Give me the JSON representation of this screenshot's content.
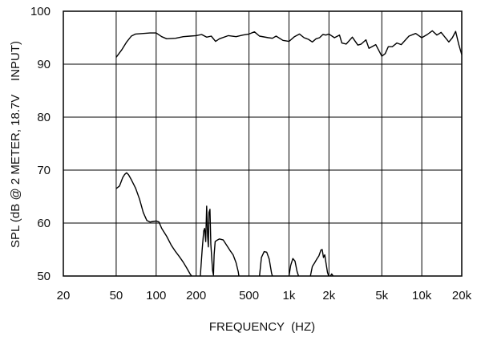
{
  "chart_data": {
    "type": "line",
    "xlabel": "FREQUENCY  (HZ)",
    "ylabel": "SPL (dB @ 2 METER, 18.7V    INPUT)",
    "x_scale": "log",
    "xlim": [
      20,
      20000
    ],
    "ylim": [
      50,
      100
    ],
    "grid": true,
    "x_ticks": [
      {
        "value": 20,
        "label": "20"
      },
      {
        "value": 50,
        "label": "50"
      },
      {
        "value": 100,
        "label": "100"
      },
      {
        "value": 200,
        "label": "200"
      },
      {
        "value": 500,
        "label": "500"
      },
      {
        "value": 1000,
        "label": "1k"
      },
      {
        "value": 2000,
        "label": "2k"
      },
      {
        "value": 5000,
        "label": "5k"
      },
      {
        "value": 10000,
        "label": "10k"
      },
      {
        "value": 20000,
        "label": "20k"
      }
    ],
    "y_ticks": [
      {
        "value": 50,
        "label": "50"
      },
      {
        "value": 60,
        "label": "60"
      },
      {
        "value": 70,
        "label": "70"
      },
      {
        "value": 80,
        "label": "80"
      },
      {
        "value": 90,
        "label": "90"
      },
      {
        "value": 100,
        "label": "100"
      }
    ],
    "series": [
      {
        "segments": [
          [
            [
              50,
              91.3
            ],
            [
              55,
              92.7
            ],
            [
              60,
              94.2
            ],
            [
              65,
              95.3
            ],
            [
              70,
              95.7
            ],
            [
              80,
              95.8
            ],
            [
              90,
              95.9
            ],
            [
              100,
              95.9
            ],
            [
              110,
              95.2
            ],
            [
              120,
              94.8
            ],
            [
              140,
              94.9
            ],
            [
              160,
              95.2
            ],
            [
              180,
              95.3
            ],
            [
              200,
              95.4
            ],
            [
              220,
              95.6
            ],
            [
              240,
              95.1
            ],
            [
              260,
              95.3
            ],
            [
              280,
              94.3
            ],
            [
              300,
              94.8
            ],
            [
              350,
              95.4
            ],
            [
              400,
              95.2
            ],
            [
              450,
              95.5
            ],
            [
              500,
              95.7
            ],
            [
              550,
              96.1
            ],
            [
              600,
              95.3
            ],
            [
              700,
              95.0
            ],
            [
              750,
              94.9
            ],
            [
              800,
              95.3
            ],
            [
              900,
              94.5
            ],
            [
              1000,
              94.3
            ],
            [
              1100,
              95.2
            ],
            [
              1200,
              95.7
            ],
            [
              1300,
              95.0
            ],
            [
              1400,
              94.7
            ],
            [
              1500,
              94.2
            ],
            [
              1600,
              94.8
            ],
            [
              1700,
              95.0
            ],
            [
              1800,
              95.6
            ],
            [
              1900,
              95.5
            ],
            [
              2000,
              95.7
            ],
            [
              2200,
              95.0
            ],
            [
              2400,
              95.5
            ],
            [
              2500,
              94.0
            ],
            [
              2700,
              93.8
            ],
            [
              3000,
              95.1
            ],
            [
              3300,
              93.6
            ],
            [
              3500,
              93.8
            ],
            [
              3800,
              94.6
            ],
            [
              4000,
              93.0
            ],
            [
              4500,
              93.7
            ],
            [
              5000,
              91.5
            ],
            [
              5300,
              92.0
            ],
            [
              5600,
              93.3
            ],
            [
              6000,
              93.3
            ],
            [
              6500,
              94.0
            ],
            [
              7000,
              93.7
            ],
            [
              8000,
              95.3
            ],
            [
              9000,
              95.8
            ],
            [
              10000,
              95.0
            ],
            [
              11000,
              95.6
            ],
            [
              12000,
              96.3
            ],
            [
              13000,
              95.5
            ],
            [
              14000,
              96.0
            ],
            [
              16000,
              94.2
            ],
            [
              17000,
              95.0
            ],
            [
              18000,
              96.2
            ],
            [
              19000,
              93.7
            ],
            [
              20000,
              91.8
            ]
          ]
        ]
      },
      {
        "segments": [
          [
            [
              50,
              66.5
            ],
            [
              53,
              67.0
            ],
            [
              56,
              68.6
            ],
            [
              58,
              69.2
            ],
            [
              60,
              69.5
            ],
            [
              62,
              69.1
            ],
            [
              65,
              68.2
            ],
            [
              70,
              66.6
            ],
            [
              75,
              64.5
            ],
            [
              80,
              62.0
            ],
            [
              85,
              60.5
            ],
            [
              90,
              60.2
            ],
            [
              95,
              60.3
            ],
            [
              100,
              60.4
            ],
            [
              105,
              60.2
            ],
            [
              110,
              59.0
            ],
            [
              120,
              57.5
            ],
            [
              130,
              55.8
            ],
            [
              140,
              54.6
            ],
            [
              150,
              53.6
            ],
            [
              160,
              52.6
            ],
            [
              170,
              51.5
            ],
            [
              180,
              50.4
            ],
            [
              185,
              50.0
            ]
          ],
          [
            [
              215,
              50.0
            ],
            [
              222,
              55.0
            ],
            [
              228,
              58.5
            ],
            [
              232,
              59.0
            ],
            [
              236,
              56.5
            ],
            [
              240,
              63.2
            ],
            [
              244,
              57.5
            ],
            [
              247,
              55.5
            ],
            [
              250,
              62.0
            ],
            [
              254,
              62.6
            ],
            [
              258,
              56.0
            ],
            [
              262,
              53.5
            ],
            [
              266,
              51.0
            ],
            [
              270,
              50.2
            ],
            [
              273,
              54.0
            ],
            [
              278,
              56.5
            ],
            [
              285,
              56.7
            ],
            [
              300,
              57.0
            ],
            [
              320,
              56.8
            ],
            [
              340,
              55.8
            ],
            [
              360,
              54.8
            ],
            [
              380,
              54.0
            ],
            [
              400,
              52.5
            ],
            [
              415,
              50.8
            ],
            [
              420,
              50.0
            ]
          ],
          [
            [
              600,
              50.0
            ],
            [
              620,
              53.5
            ],
            [
              650,
              54.6
            ],
            [
              680,
              54.5
            ],
            [
              710,
              53.2
            ],
            [
              740,
              50.5
            ],
            [
              750,
              50.0
            ]
          ],
          [
            [
              1000,
              50.0
            ],
            [
              1030,
              52.0
            ],
            [
              1070,
              53.3
            ],
            [
              1110,
              52.8
            ],
            [
              1150,
              50.9
            ],
            [
              1180,
              50.0
            ]
          ],
          [
            [
              1450,
              50.0
            ],
            [
              1500,
              51.8
            ],
            [
              1560,
              52.5
            ],
            [
              1620,
              53.2
            ],
            [
              1680,
              53.8
            ],
            [
              1740,
              54.9
            ],
            [
              1780,
              55.0
            ],
            [
              1820,
              53.5
            ],
            [
              1860,
              54.0
            ],
            [
              1900,
              52.5
            ],
            [
              1950,
              50.7
            ],
            [
              1990,
              50.0
            ]
          ],
          [
            [
              2050,
              50.0
            ],
            [
              2100,
              50.4
            ],
            [
              2150,
              50.0
            ]
          ]
        ]
      }
    ]
  }
}
